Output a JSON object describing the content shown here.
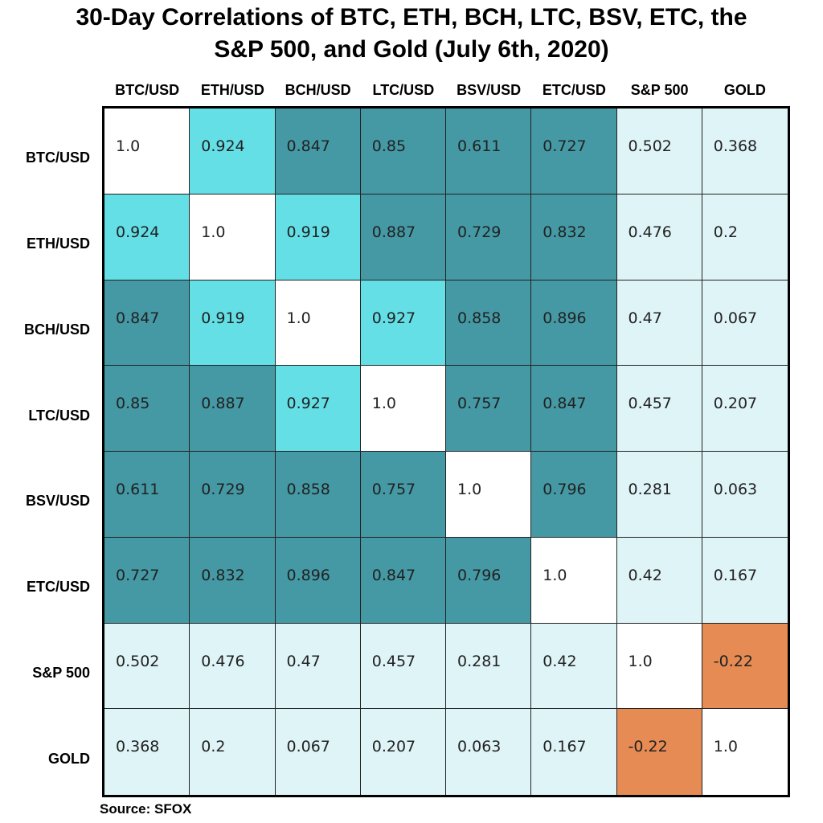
{
  "colors": {
    "diagonal": "#ffffff",
    "high": "#64dfe6",
    "mid": "#4499a4",
    "low": "#dff4f7",
    "negative": "#e68b53"
  },
  "chart_data": {
    "type": "heatmap",
    "title_line1": "30-Day Correlations of BTC, ETH, BCH, LTC, BSV, ETC, the",
    "title_line2": "S&P 500, and Gold (July 6th, 2020)",
    "columns": [
      "BTC/USD",
      "ETH/USD",
      "BCH/USD",
      "LTC/USD",
      "BSV/USD",
      "ETC/USD",
      "S&P 500",
      "GOLD"
    ],
    "rows": [
      "BTC/USD",
      "ETH/USD",
      "BCH/USD",
      "LTC/USD",
      "BSV/USD",
      "ETC/USD",
      "S&P 500",
      "GOLD"
    ],
    "values": [
      [
        "1.0",
        "0.924",
        "0.847",
        "0.85",
        "0.611",
        "0.727",
        "0.502",
        "0.368"
      ],
      [
        "0.924",
        "1.0",
        "0.919",
        "0.887",
        "0.729",
        "0.832",
        "0.476",
        "0.2"
      ],
      [
        "0.847",
        "0.919",
        "1.0",
        "0.927",
        "0.858",
        "0.896",
        "0.47",
        "0.067"
      ],
      [
        "0.85",
        "0.887",
        "0.927",
        "1.0",
        "0.757",
        "0.847",
        "0.457",
        "0.207"
      ],
      [
        "0.611",
        "0.729",
        "0.858",
        "0.757",
        "1.0",
        "0.796",
        "0.281",
        "0.063"
      ],
      [
        "0.727",
        "0.832",
        "0.896",
        "0.847",
        "0.796",
        "1.0",
        "0.42",
        "0.167"
      ],
      [
        "0.502",
        "0.476",
        "0.47",
        "0.457",
        "0.281",
        "0.42",
        "1.0",
        "-0.22"
      ],
      [
        "0.368",
        "0.2",
        "0.067",
        "0.207",
        "0.063",
        "0.167",
        "-0.22",
        "1.0"
      ]
    ],
    "source": "Source: SFOX",
    "legend": "none",
    "grid": true
  }
}
